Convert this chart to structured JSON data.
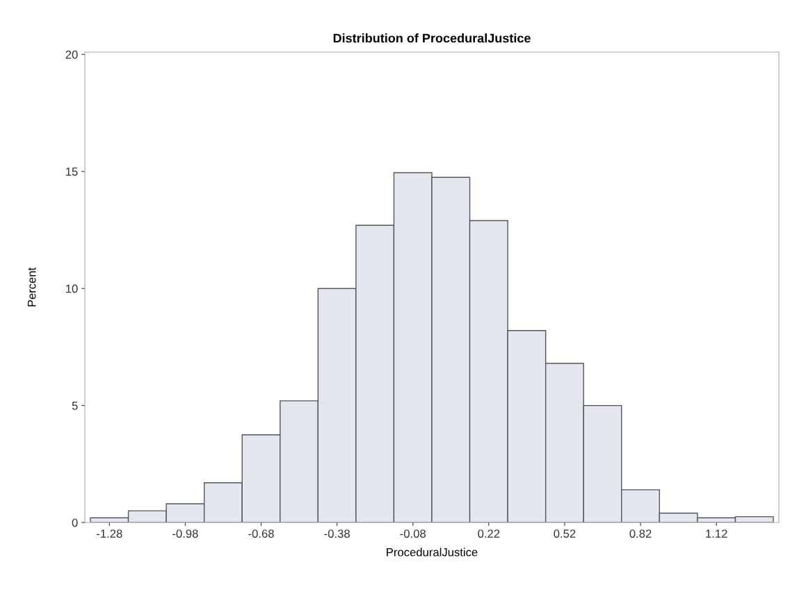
{
  "chart_data": {
    "type": "histogram",
    "title": "Distribution of ProceduralJustice",
    "xlabel": "ProceduralJustice",
    "ylabel": "Percent",
    "bins": [
      -1.355,
      -1.205,
      -1.055,
      -0.905,
      -0.755,
      -0.605,
      -0.455,
      -0.305,
      -0.155,
      -0.005,
      0.145,
      0.295,
      0.445,
      0.595,
      0.745,
      0.895,
      1.045,
      1.195,
      1.345
    ],
    "values": [
      0.2,
      0.5,
      0.8,
      1.7,
      3.75,
      5.2,
      10.0,
      12.7,
      14.95,
      14.75,
      12.9,
      8.2,
      6.8,
      5.0,
      1.4,
      0.4,
      0.2,
      0.25
    ],
    "color": "#e3e7f0",
    "xlim": [
      -1.377,
      1.367
    ],
    "xticks": [
      -1.28,
      -0.98,
      -0.68,
      -0.38,
      -0.08,
      0.22,
      0.52,
      0.82,
      1.12
    ],
    "ylim": [
      0,
      20.1
    ],
    "yticks": [
      0,
      5,
      10,
      15,
      20
    ],
    "grid": false
  }
}
